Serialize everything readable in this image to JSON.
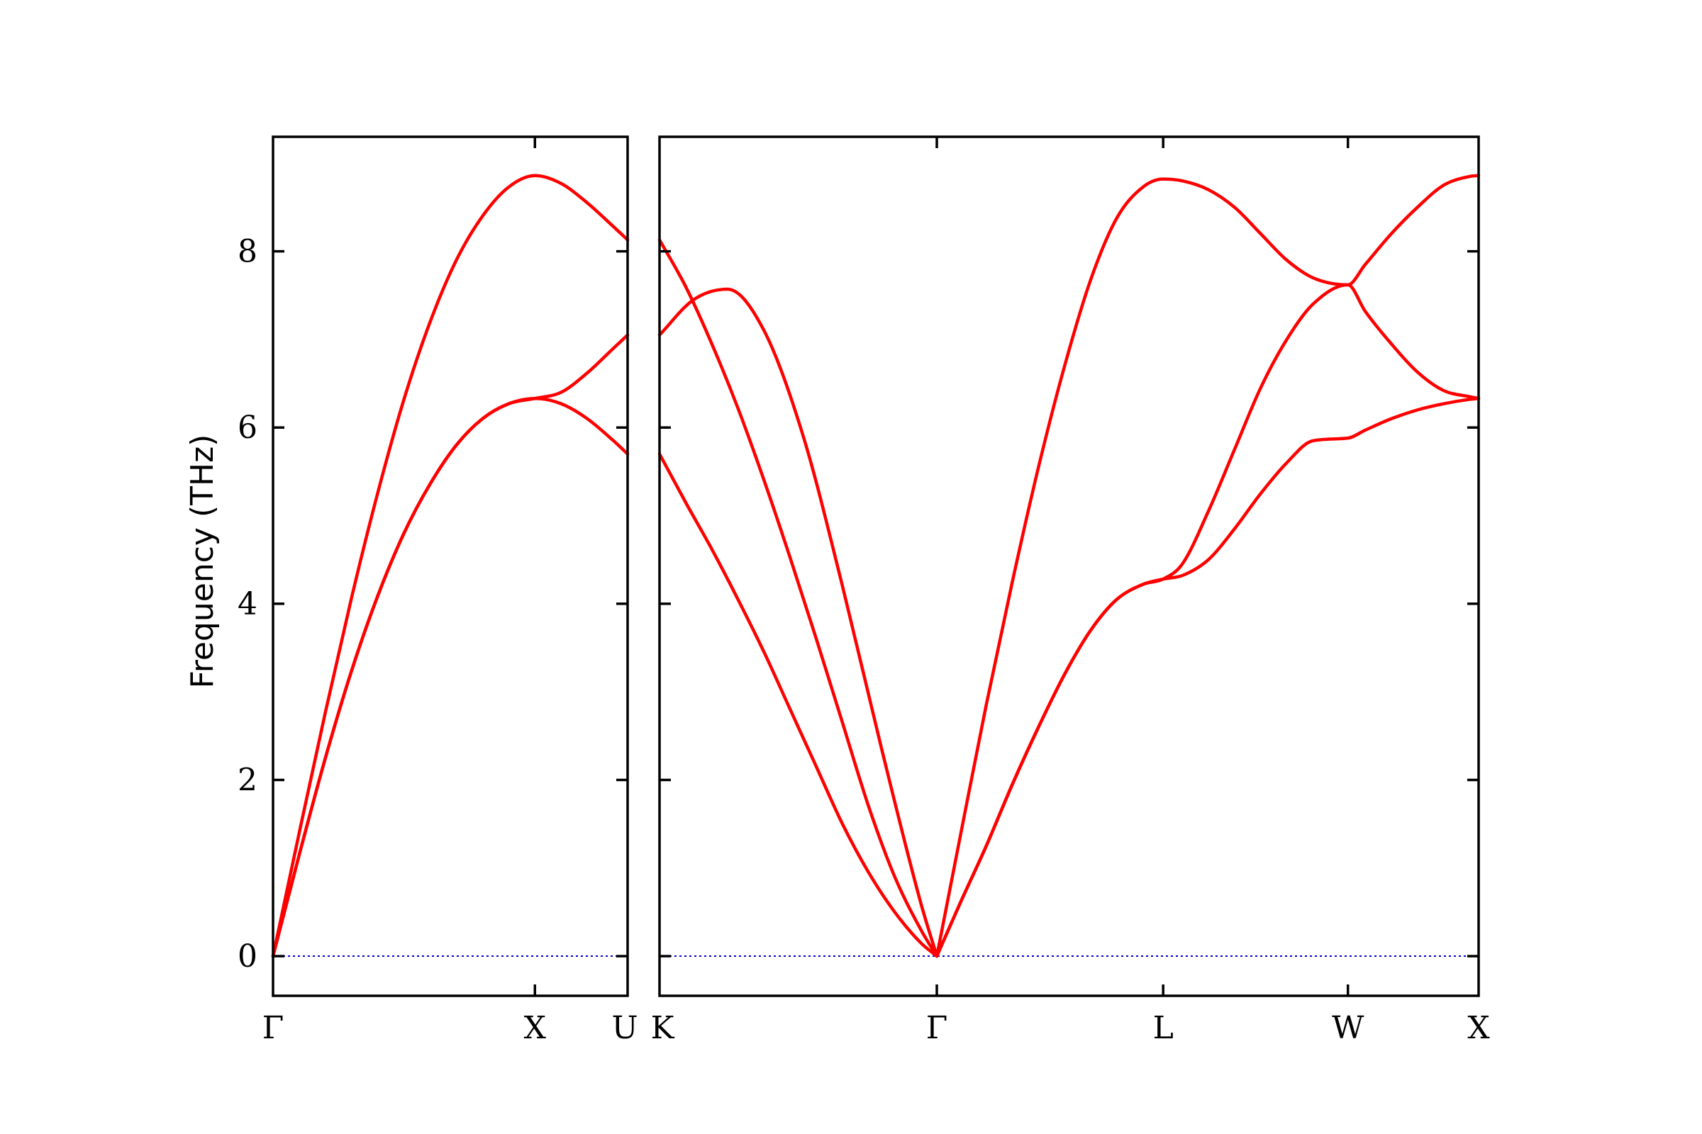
{
  "chart_data": {
    "type": "line",
    "ylabel": "Frequency (THz)",
    "ylim": [
      -0.45,
      9.3
    ],
    "yticks": [
      0,
      2,
      4,
      6,
      8
    ],
    "colors": {
      "bands": "#ff0000",
      "zero_line": "#0000cc",
      "frame": "#000000"
    },
    "panels": [
      {
        "id": "left",
        "path_positions": [
          0,
          1,
          1.354
        ],
        "path_labels": [
          "Γ",
          "X",
          "U"
        ],
        "series": [
          {
            "x": [
              0,
              0.1,
              0.2,
              0.3,
              0.4,
              0.5,
              0.6,
              0.7,
              0.8,
              0.9,
              1.0,
              1.1,
              1.2,
              1.3,
              1.354
            ],
            "y": [
              0,
              1.4,
              2.77,
              4.07,
              5.26,
              6.32,
              7.2,
              7.9,
              8.4,
              8.73,
              8.86,
              8.77,
              8.55,
              8.28,
              8.13
            ]
          },
          {
            "x": [
              0,
              0.1,
              0.2,
              0.3,
              0.4,
              0.5,
              0.6,
              0.7,
              0.8,
              0.9,
              1.0,
              1.1,
              1.2,
              1.3,
              1.354
            ],
            "y": [
              0,
              1.15,
              2.25,
              3.24,
              4.09,
              4.8,
              5.36,
              5.8,
              6.1,
              6.27,
              6.33,
              6.4,
              6.62,
              6.9,
              7.05
            ]
          },
          {
            "x": [
              0,
              0.1,
              0.2,
              0.3,
              0.4,
              0.5,
              0.6,
              0.7,
              0.8,
              0.9,
              1.0,
              1.1,
              1.2,
              1.3,
              1.354
            ],
            "y": [
              0,
              1.15,
              2.25,
              3.24,
              4.09,
              4.8,
              5.36,
              5.8,
              6.1,
              6.27,
              6.33,
              6.27,
              6.1,
              5.85,
              5.7
            ]
          }
        ]
      },
      {
        "id": "right",
        "path_positions": [
          0,
          1.061,
          1.927,
          2.634,
          3.134
        ],
        "path_labels": [
          "K",
          "Γ",
          "L",
          "W",
          "X"
        ],
        "series": [
          {
            "x": [
              0,
              0.1,
              0.2,
              0.3,
              0.4,
              0.5,
              0.6,
              0.7,
              0.8,
              0.9,
              1.0,
              1.061
            ],
            "y": [
              8.13,
              7.6,
              6.95,
              6.22,
              5.4,
              4.52,
              3.6,
              2.65,
              1.7,
              0.9,
              0.3,
              0
            ]
          },
          {
            "x": [
              0,
              0.13,
              0.26,
              0.4,
              0.55,
              0.7,
              0.85,
              1.0,
              1.061
            ],
            "y": [
              7.05,
              7.45,
              7.57,
              7.1,
              5.9,
              4.2,
              2.35,
              0.6,
              0
            ]
          },
          {
            "x": [
              0,
              0.1,
              0.2,
              0.3,
              0.4,
              0.5,
              0.6,
              0.7,
              0.8,
              0.9,
              1.0,
              1.061
            ],
            "y": [
              5.7,
              5.15,
              4.62,
              4.05,
              3.45,
              2.8,
              2.15,
              1.5,
              0.95,
              0.5,
              0.15,
              0
            ]
          },
          {
            "x": [
              1.061,
              1.15,
              1.25,
              1.35,
              1.45,
              1.55,
              1.65,
              1.75,
              1.85,
              1.927,
              2.0,
              2.1,
              2.2,
              2.3,
              2.4,
              2.5,
              2.634,
              2.7,
              2.8,
              2.9,
              3.0,
              3.1,
              3.134
            ],
            "y": [
              0,
              1.35,
              2.85,
              4.25,
              5.55,
              6.7,
              7.68,
              8.38,
              8.73,
              8.82,
              8.8,
              8.7,
              8.5,
              8.2,
              7.9,
              7.7,
              7.62,
              7.85,
              8.2,
              8.5,
              8.75,
              8.85,
              8.86
            ]
          },
          {
            "x": [
              1.061,
              1.15,
              1.25,
              1.35,
              1.45,
              1.55,
              1.65,
              1.75,
              1.85,
              1.927,
              2.0,
              2.1,
              2.2,
              2.3,
              2.4,
              2.5,
              2.634,
              2.7,
              2.8,
              2.9,
              3.0,
              3.1,
              3.134
            ],
            "y": [
              0,
              0.6,
              1.25,
              1.95,
              2.6,
              3.2,
              3.7,
              4.05,
              4.22,
              4.28,
              4.45,
              5.05,
              5.75,
              6.45,
              7.0,
              7.4,
              7.62,
              7.32,
              6.95,
              6.63,
              6.42,
              6.35,
              6.33
            ]
          },
          {
            "x": [
              1.061,
              1.15,
              1.25,
              1.35,
              1.45,
              1.55,
              1.65,
              1.75,
              1.85,
              1.927,
              2.0,
              2.1,
              2.2,
              2.3,
              2.4,
              2.5,
              2.634,
              2.7,
              2.8,
              2.9,
              3.0,
              3.1,
              3.134
            ],
            "y": [
              0,
              0.6,
              1.25,
              1.95,
              2.6,
              3.2,
              3.7,
              4.05,
              4.22,
              4.28,
              4.32,
              4.5,
              4.85,
              5.25,
              5.6,
              5.85,
              5.88,
              5.97,
              6.1,
              6.2,
              6.27,
              6.32,
              6.33
            ]
          }
        ]
      }
    ]
  }
}
